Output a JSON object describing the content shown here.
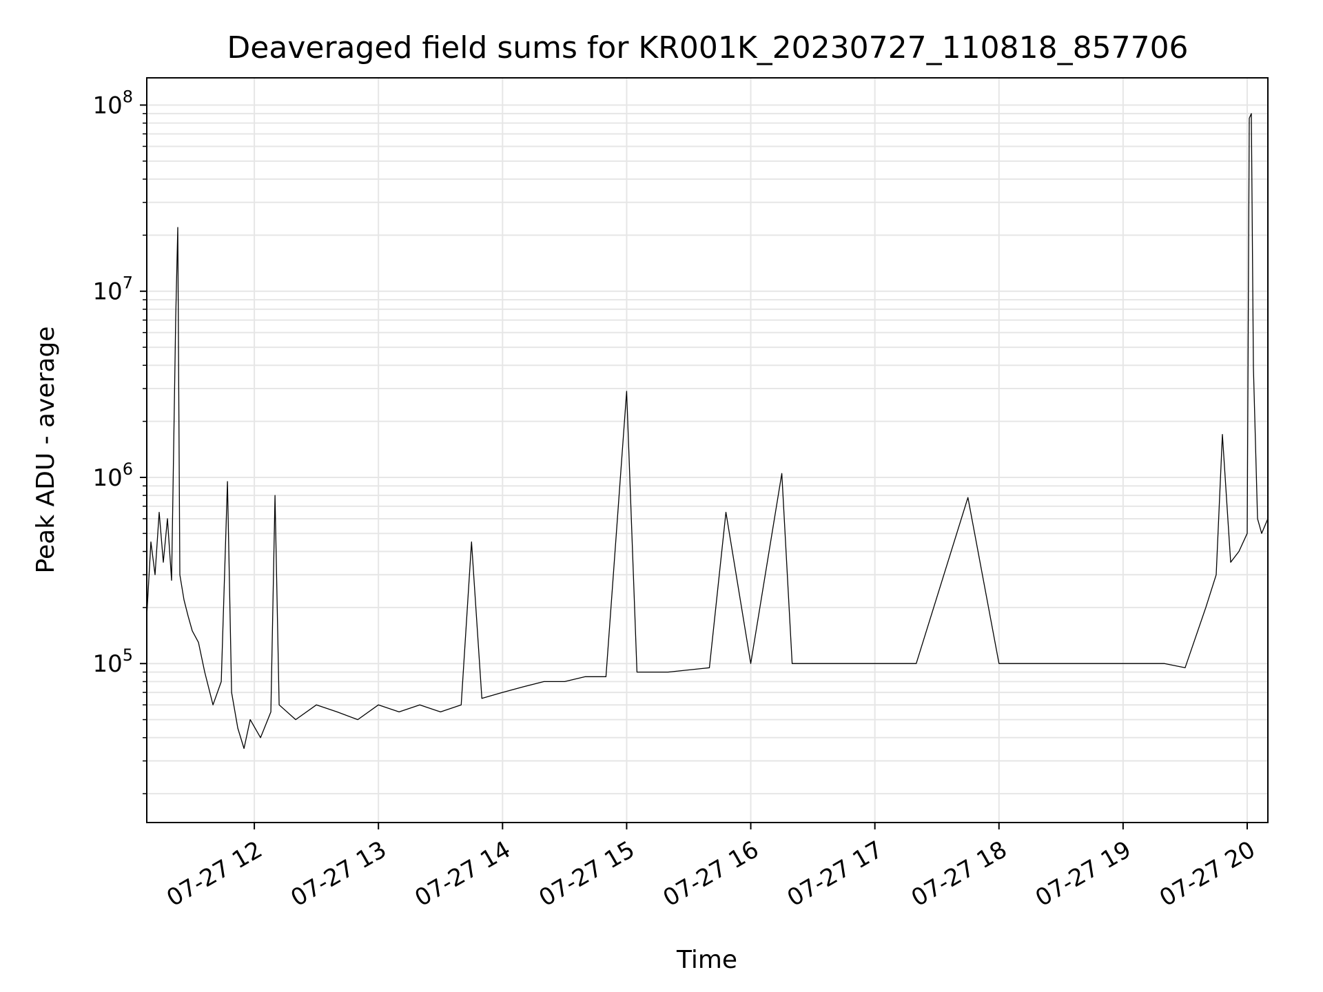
{
  "chart_data": {
    "type": "line",
    "title": "Deaveraged field sums for KR001K_20230727_110818_857706",
    "xlabel": "Time",
    "ylabel": "Peak ADU - average",
    "x_scale": "time",
    "y_scale": "log",
    "xlim": [
      "2023-07-27 11:08",
      "2023-07-27 20:10"
    ],
    "ylim": [
      14000,
      140000000
    ],
    "x_ticks": [
      {
        "time": "2023-07-27 12:00",
        "label": "07-27 12"
      },
      {
        "time": "2023-07-27 13:00",
        "label": "07-27 13"
      },
      {
        "time": "2023-07-27 14:00",
        "label": "07-27 14"
      },
      {
        "time": "2023-07-27 15:00",
        "label": "07-27 15"
      },
      {
        "time": "2023-07-27 16:00",
        "label": "07-27 16"
      },
      {
        "time": "2023-07-27 17:00",
        "label": "07-27 17"
      },
      {
        "time": "2023-07-27 18:00",
        "label": "07-27 18"
      },
      {
        "time": "2023-07-27 19:00",
        "label": "07-27 19"
      },
      {
        "time": "2023-07-27 20:00",
        "label": "07-27 20"
      }
    ],
    "y_ticks": [
      {
        "value": 100000,
        "base": "10",
        "exp": "5"
      },
      {
        "value": 1000000,
        "base": "10",
        "exp": "6"
      },
      {
        "value": 10000000,
        "base": "10",
        "exp": "7"
      },
      {
        "value": 100000000,
        "base": "10",
        "exp": "8"
      }
    ],
    "grid": true,
    "line_color": "#000000",
    "grid_color": "#e6e6e6",
    "series": [
      {
        "values": [
          [
            "2023-07-27 11:08",
            180000
          ],
          [
            "2023-07-27 11:10",
            450000
          ],
          [
            "2023-07-27 11:12",
            300000
          ],
          [
            "2023-07-27 11:14",
            650000
          ],
          [
            "2023-07-27 11:16",
            350000
          ],
          [
            "2023-07-27 11:18",
            600000
          ],
          [
            "2023-07-27 11:20",
            280000
          ],
          [
            "2023-07-27 11:22",
            7200000
          ],
          [
            "2023-07-27 11:23",
            22000000
          ],
          [
            "2023-07-27 11:24",
            300000
          ],
          [
            "2023-07-27 11:26",
            220000
          ],
          [
            "2023-07-27 11:28",
            180000
          ],
          [
            "2023-07-27 11:30",
            150000
          ],
          [
            "2023-07-27 11:33",
            130000
          ],
          [
            "2023-07-27 11:36",
            90000
          ],
          [
            "2023-07-27 11:40",
            60000
          ],
          [
            "2023-07-27 11:44",
            80000
          ],
          [
            "2023-07-27 11:47",
            950000
          ],
          [
            "2023-07-27 11:49",
            70000
          ],
          [
            "2023-07-27 11:52",
            45000
          ],
          [
            "2023-07-27 11:55",
            35000
          ],
          [
            "2023-07-27 11:58",
            50000
          ],
          [
            "2023-07-27 12:03",
            40000
          ],
          [
            "2023-07-27 12:08",
            55000
          ],
          [
            "2023-07-27 12:10",
            800000
          ],
          [
            "2023-07-27 12:12",
            60000
          ],
          [
            "2023-07-27 12:20",
            50000
          ],
          [
            "2023-07-27 12:30",
            60000
          ],
          [
            "2023-07-27 12:40",
            55000
          ],
          [
            "2023-07-27 12:50",
            50000
          ],
          [
            "2023-07-27 13:00",
            60000
          ],
          [
            "2023-07-27 13:10",
            55000
          ],
          [
            "2023-07-27 13:20",
            60000
          ],
          [
            "2023-07-27 13:30",
            55000
          ],
          [
            "2023-07-27 13:40",
            60000
          ],
          [
            "2023-07-27 13:45",
            450000
          ],
          [
            "2023-07-27 13:50",
            65000
          ],
          [
            "2023-07-27 14:00",
            70000
          ],
          [
            "2023-07-27 14:10",
            75000
          ],
          [
            "2023-07-27 14:20",
            80000
          ],
          [
            "2023-07-27 14:30",
            80000
          ],
          [
            "2023-07-27 14:40",
            85000
          ],
          [
            "2023-07-27 14:50",
            85000
          ],
          [
            "2023-07-27 15:00",
            2900000
          ],
          [
            "2023-07-27 15:05",
            90000
          ],
          [
            "2023-07-27 15:20",
            90000
          ],
          [
            "2023-07-27 15:40",
            95000
          ],
          [
            "2023-07-27 15:48",
            650000
          ],
          [
            "2023-07-27 16:00",
            100000
          ],
          [
            "2023-07-27 16:15",
            1050000
          ],
          [
            "2023-07-27 16:20",
            100000
          ],
          [
            "2023-07-27 16:40",
            100000
          ],
          [
            "2023-07-27 17:00",
            100000
          ],
          [
            "2023-07-27 17:20",
            100000
          ],
          [
            "2023-07-27 17:45",
            780000
          ],
          [
            "2023-07-27 18:00",
            100000
          ],
          [
            "2023-07-27 18:20",
            100000
          ],
          [
            "2023-07-27 18:40",
            100000
          ],
          [
            "2023-07-27 19:00",
            100000
          ],
          [
            "2023-07-27 19:20",
            100000
          ],
          [
            "2023-07-27 19:30",
            95000
          ],
          [
            "2023-07-27 19:40",
            200000
          ],
          [
            "2023-07-27 19:45",
            300000
          ],
          [
            "2023-07-27 19:48",
            1700000
          ],
          [
            "2023-07-27 19:52",
            350000
          ],
          [
            "2023-07-27 19:56",
            400000
          ],
          [
            "2023-07-27 20:00",
            500000
          ],
          [
            "2023-07-27 20:01",
            85000000
          ],
          [
            "2023-07-27 20:02",
            90000000
          ],
          [
            "2023-07-27 20:03",
            3900000
          ],
          [
            "2023-07-27 20:05",
            600000
          ],
          [
            "2023-07-27 20:07",
            500000
          ],
          [
            "2023-07-27 20:10",
            600000
          ]
        ]
      }
    ]
  }
}
